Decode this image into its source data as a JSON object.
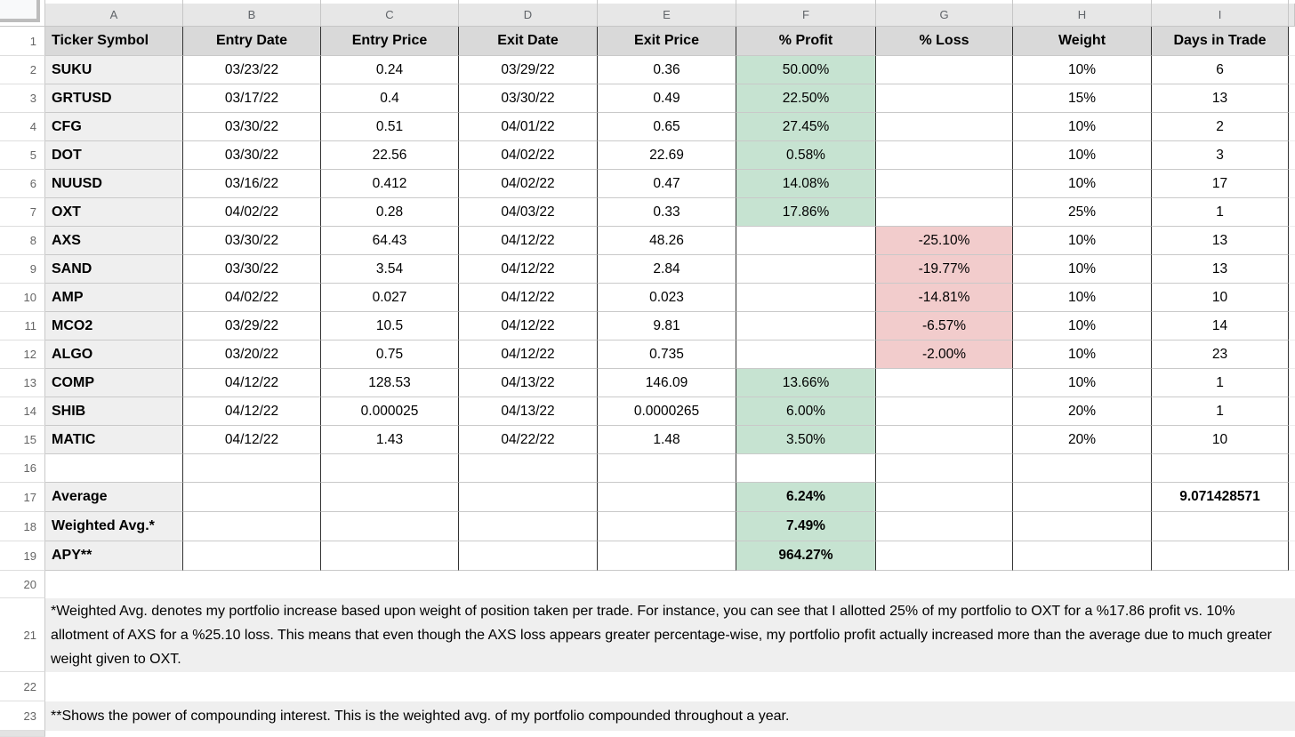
{
  "sheet": {
    "column_headers": [
      "A",
      "B",
      "C",
      "D",
      "E",
      "F",
      "G",
      "H",
      "I"
    ],
    "row_numbers": [
      "1",
      "2",
      "3",
      "4",
      "5",
      "6",
      "7",
      "8",
      "9",
      "10",
      "11",
      "12",
      "13",
      "14",
      "15",
      "16",
      "17",
      "18",
      "19",
      "20",
      "21",
      "22",
      "23"
    ],
    "table": {
      "headers": [
        "Ticker Symbol",
        "Entry Date",
        "Entry Price",
        "Exit Date",
        "Exit Price",
        "% Profit",
        "% Loss",
        "Weight",
        "Days in Trade"
      ],
      "trades": [
        {
          "row": "2",
          "ticker": "SUKU",
          "entry_date": "03/23/22",
          "entry_price": "0.24",
          "exit_date": "03/29/22",
          "exit_price": "0.36",
          "profit": "50.00%",
          "loss": "",
          "weight": "10%",
          "days": "6"
        },
        {
          "row": "3",
          "ticker": "GRTUSD",
          "entry_date": "03/17/22",
          "entry_price": "0.4",
          "exit_date": "03/30/22",
          "exit_price": "0.49",
          "profit": "22.50%",
          "loss": "",
          "weight": "15%",
          "days": "13"
        },
        {
          "row": "4",
          "ticker": "CFG",
          "entry_date": "03/30/22",
          "entry_price": "0.51",
          "exit_date": "04/01/22",
          "exit_price": "0.65",
          "profit": "27.45%",
          "loss": "",
          "weight": "10%",
          "days": "2"
        },
        {
          "row": "5",
          "ticker": "DOT",
          "entry_date": "03/30/22",
          "entry_price": "22.56",
          "exit_date": "04/02/22",
          "exit_price": "22.69",
          "profit": "0.58%",
          "loss": "",
          "weight": "10%",
          "days": "3"
        },
        {
          "row": "6",
          "ticker": "NUUSD",
          "entry_date": "03/16/22",
          "entry_price": "0.412",
          "exit_date": "04/02/22",
          "exit_price": "0.47",
          "profit": "14.08%",
          "loss": "",
          "weight": "10%",
          "days": "17"
        },
        {
          "row": "7",
          "ticker": "OXT",
          "entry_date": "04/02/22",
          "entry_price": "0.28",
          "exit_date": "04/03/22",
          "exit_price": "0.33",
          "profit": "17.86%",
          "loss": "",
          "weight": "25%",
          "days": "1"
        },
        {
          "row": "8",
          "ticker": "AXS",
          "entry_date": "03/30/22",
          "entry_price": "64.43",
          "exit_date": "04/12/22",
          "exit_price": "48.26",
          "profit": "",
          "loss": "-25.10%",
          "weight": "10%",
          "days": "13"
        },
        {
          "row": "9",
          "ticker": "SAND",
          "entry_date": "03/30/22",
          "entry_price": "3.54",
          "exit_date": "04/12/22",
          "exit_price": "2.84",
          "profit": "",
          "loss": "-19.77%",
          "weight": "10%",
          "days": "13"
        },
        {
          "row": "10",
          "ticker": "AMP",
          "entry_date": "04/02/22",
          "entry_price": "0.027",
          "exit_date": "04/12/22",
          "exit_price": "0.023",
          "profit": "",
          "loss": "-14.81%",
          "weight": "10%",
          "days": "10"
        },
        {
          "row": "11",
          "ticker": "MCO2",
          "entry_date": "03/29/22",
          "entry_price": "10.5",
          "exit_date": "04/12/22",
          "exit_price": "9.81",
          "profit": "",
          "loss": "-6.57%",
          "weight": "10%",
          "days": "14"
        },
        {
          "row": "12",
          "ticker": "ALGO",
          "entry_date": "03/20/22",
          "entry_price": "0.75",
          "exit_date": "04/12/22",
          "exit_price": "0.735",
          "profit": "",
          "loss": "-2.00%",
          "weight": "10%",
          "days": "23"
        },
        {
          "row": "13",
          "ticker": "COMP",
          "entry_date": "04/12/22",
          "entry_price": "128.53",
          "exit_date": "04/13/22",
          "exit_price": "146.09",
          "profit": "13.66%",
          "loss": "",
          "weight": "10%",
          "days": "1"
        },
        {
          "row": "14",
          "ticker": "SHIB",
          "entry_date": "04/12/22",
          "entry_price": "0.000025",
          "exit_date": "04/13/22",
          "exit_price": "0.0000265",
          "profit": "6.00%",
          "loss": "",
          "weight": "20%",
          "days": "1"
        },
        {
          "row": "15",
          "ticker": "MATIC",
          "entry_date": "04/12/22",
          "entry_price": "1.43",
          "exit_date": "04/22/22",
          "exit_price": "1.48",
          "profit": "3.50%",
          "loss": "",
          "weight": "20%",
          "days": "10"
        }
      ],
      "summary_rows": [
        {
          "row": "17",
          "label": "Average",
          "profit": "6.24%",
          "days": "9.071428571"
        },
        {
          "row": "18",
          "label": "Weighted Avg.*",
          "profit": "7.49%",
          "days": ""
        },
        {
          "row": "19",
          "label": "APY**",
          "profit": "964.27%",
          "days": ""
        }
      ]
    },
    "notes": {
      "note21": "*Weighted Avg. denotes my portfolio increase based upon weight of position taken per trade. For instance, you can see that I allotted 25% of my portfolio to OXT for a %17.86 profit vs. 10% allotment of AXS for a %25.10 loss. This means that even though the AXS loss appears greater percentage-wise, my portfolio profit actually increased more than the average due to much greater weight given to OXT.",
      "note23": "**Shows the power of compounding interest. This is the weighted avg. of my portfolio compounded throughout a year."
    },
    "colors": {
      "profit_green": "#c6e3d1",
      "loss_red": "#f2cccc",
      "header_row_gray": "#d9d9d9",
      "label_column_gray": "#efefef",
      "note_gray": "#efefef"
    }
  }
}
